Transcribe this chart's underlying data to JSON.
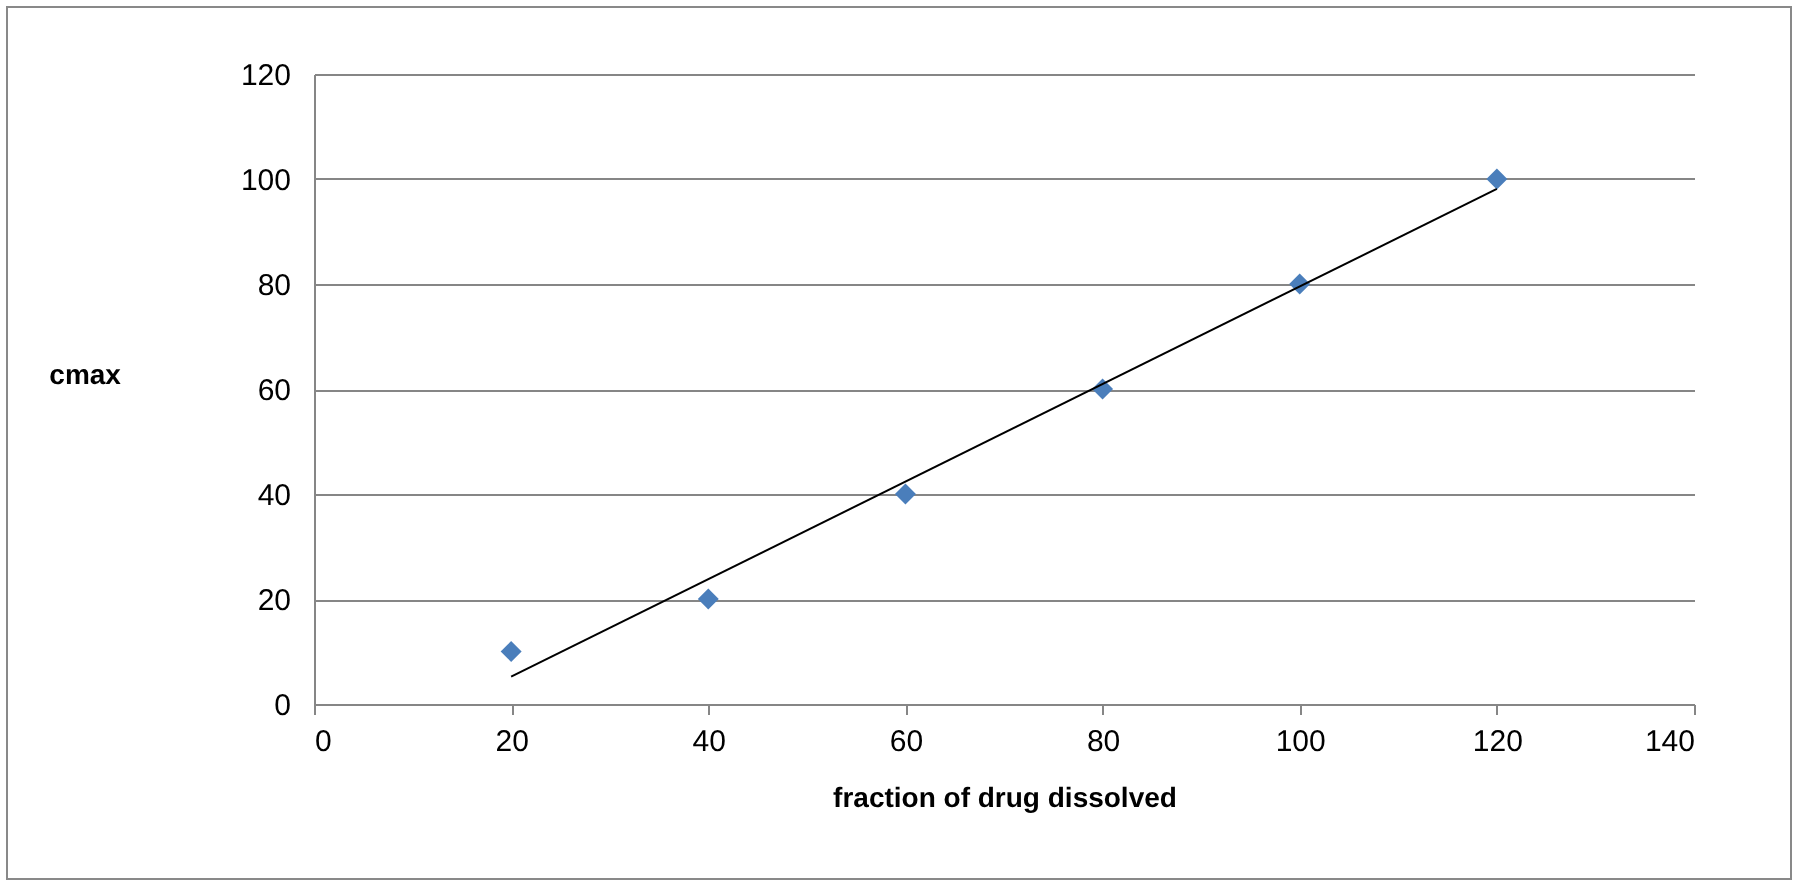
{
  "chart_data": {
    "type": "scatter",
    "xlabel": "fraction of drug dissolved",
    "ylabel": "cmax",
    "x": [
      20,
      40,
      60,
      80,
      100,
      120
    ],
    "series": [
      {
        "color": "#4a7ebb",
        "values": [
          10,
          20,
          40,
          60,
          80,
          100
        ],
        "marker": "diamond"
      },
      {
        "type": "line",
        "color": "#000000",
        "x": [
          20,
          120
        ],
        "values": [
          5.2,
          98.1
        ]
      }
    ],
    "xlim": [
      0,
      140
    ],
    "xticks": [
      0,
      20,
      40,
      60,
      80,
      100,
      120,
      140
    ],
    "ylim": [
      0,
      120
    ],
    "yticks": [
      0,
      20,
      40,
      60,
      80,
      100,
      120
    ],
    "grid": "y"
  }
}
